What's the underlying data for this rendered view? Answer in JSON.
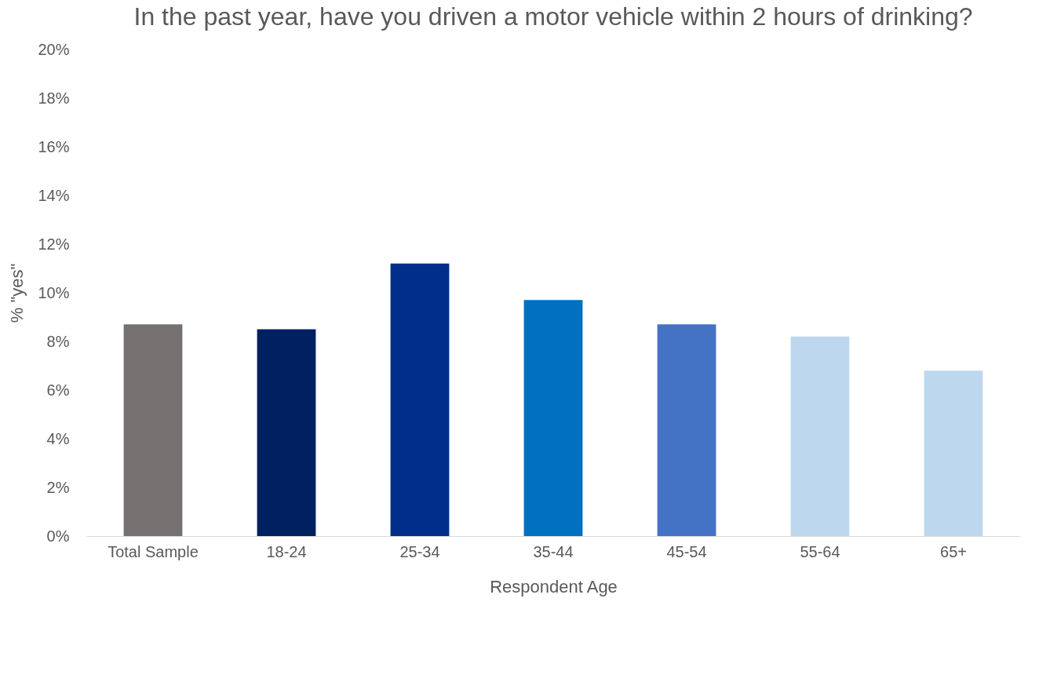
{
  "chart_data": {
    "type": "bar",
    "title": "In the past year, have you driven a motor vehicle within 2 hours of drinking?",
    "xlabel": "Respondent Age",
    "ylabel": "% \"yes\"",
    "categories": [
      "Total Sample",
      "18-24",
      "25-34",
      "35-44",
      "45-54",
      "55-64",
      "65+"
    ],
    "values": [
      8.7,
      8.5,
      11.2,
      9.7,
      8.7,
      8.2,
      6.8
    ],
    "colors": [
      "#767171",
      "#002060",
      "#002d8a",
      "#0070c0",
      "#4472c4",
      "#bdd7ee",
      "#bdd7ee"
    ],
    "ylim": [
      0,
      20
    ],
    "yticks": [
      {
        "value": 0,
        "label": "0%"
      },
      {
        "value": 2,
        "label": "2%"
      },
      {
        "value": 4,
        "label": "4%"
      },
      {
        "value": 6,
        "label": "6%"
      },
      {
        "value": 8,
        "label": "8%"
      },
      {
        "value": 10,
        "label": "10%"
      },
      {
        "value": 12,
        "label": "12%"
      },
      {
        "value": 14,
        "label": "14%"
      },
      {
        "value": 16,
        "label": "16%"
      },
      {
        "value": 18,
        "label": "18%"
      },
      {
        "value": 20,
        "label": "20%"
      }
    ]
  }
}
